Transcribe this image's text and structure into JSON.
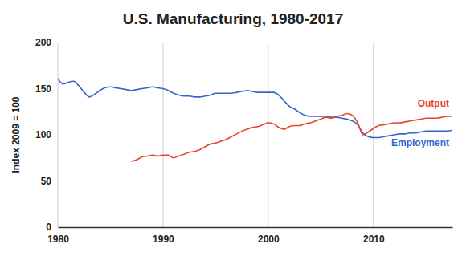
{
  "chart_data": {
    "type": "line",
    "title": "U.S. Manufacturing, 1980-2017",
    "y_label": "Index 2009 = 100",
    "x": [
      1980,
      1980.5,
      1981,
      1981.5,
      1982,
      1982.5,
      1983,
      1983.5,
      1984,
      1984.5,
      1985,
      1985.5,
      1986,
      1986.5,
      1987,
      1987.5,
      1988,
      1988.5,
      1989,
      1989.5,
      1990,
      1990.5,
      1991,
      1991.5,
      1992,
      1992.5,
      1993,
      1993.5,
      1994,
      1994.5,
      1995,
      1995.5,
      1996,
      1996.5,
      1997,
      1997.5,
      1998,
      1998.5,
      1999,
      1999.5,
      2000,
      2000.5,
      2001,
      2001.5,
      2002,
      2002.5,
      2003,
      2003.5,
      2004,
      2004.5,
      2005,
      2005.5,
      2006,
      2006.5,
      2007,
      2007.5,
      2008,
      2008.5,
      2009,
      2009.5,
      2010,
      2010.5,
      2011,
      2011.5,
      2012,
      2012.5,
      2013,
      2013.5,
      2014,
      2014.5,
      2015,
      2015.5,
      2016,
      2016.5,
      2017,
      2017.5
    ],
    "series": [
      {
        "name": "Employment",
        "color": "#3366cc",
        "values": [
          161,
          155,
          157,
          158,
          153,
          146,
          141,
          144,
          148,
          151,
          152,
          151,
          150,
          149,
          148,
          149,
          150,
          151,
          152,
          151,
          150,
          148,
          145,
          143,
          142,
          142,
          141,
          141,
          142,
          143,
          145,
          145,
          145,
          145,
          146,
          147,
          148,
          147,
          146,
          146,
          146,
          146,
          143,
          137,
          131,
          128,
          124,
          121,
          120,
          120,
          120,
          120,
          119,
          119,
          118,
          117,
          115,
          111,
          102,
          98,
          97,
          97,
          98,
          99,
          100,
          101,
          101,
          102,
          102,
          103,
          104,
          104,
          104,
          104,
          104,
          105
        ]
      },
      {
        "name": "Output",
        "color": "#e8452c",
        "values": [
          null,
          null,
          null,
          null,
          null,
          null,
          null,
          null,
          null,
          null,
          null,
          null,
          null,
          null,
          71,
          73,
          76,
          77,
          78,
          77,
          78,
          78,
          75,
          77,
          79,
          81,
          82,
          84,
          87,
          90,
          91,
          93,
          95,
          98,
          101,
          104,
          106,
          108,
          109,
          111,
          113,
          112,
          108,
          106,
          109,
          110,
          110,
          112,
          113,
          115,
          117,
          119,
          118,
          120,
          121,
          123,
          121,
          113,
          100,
          103,
          107,
          110,
          111,
          112,
          113,
          113,
          114,
          115,
          116,
          117,
          118,
          118,
          118,
          119,
          120,
          120
        ]
      }
    ],
    "xlim": [
      1980,
      2017.5
    ],
    "xticks": [
      1980,
      1990,
      2000,
      2010
    ],
    "ylim": [
      0,
      200
    ],
    "yticks": [
      0,
      50,
      100,
      150,
      200
    ],
    "grid": "x"
  }
}
